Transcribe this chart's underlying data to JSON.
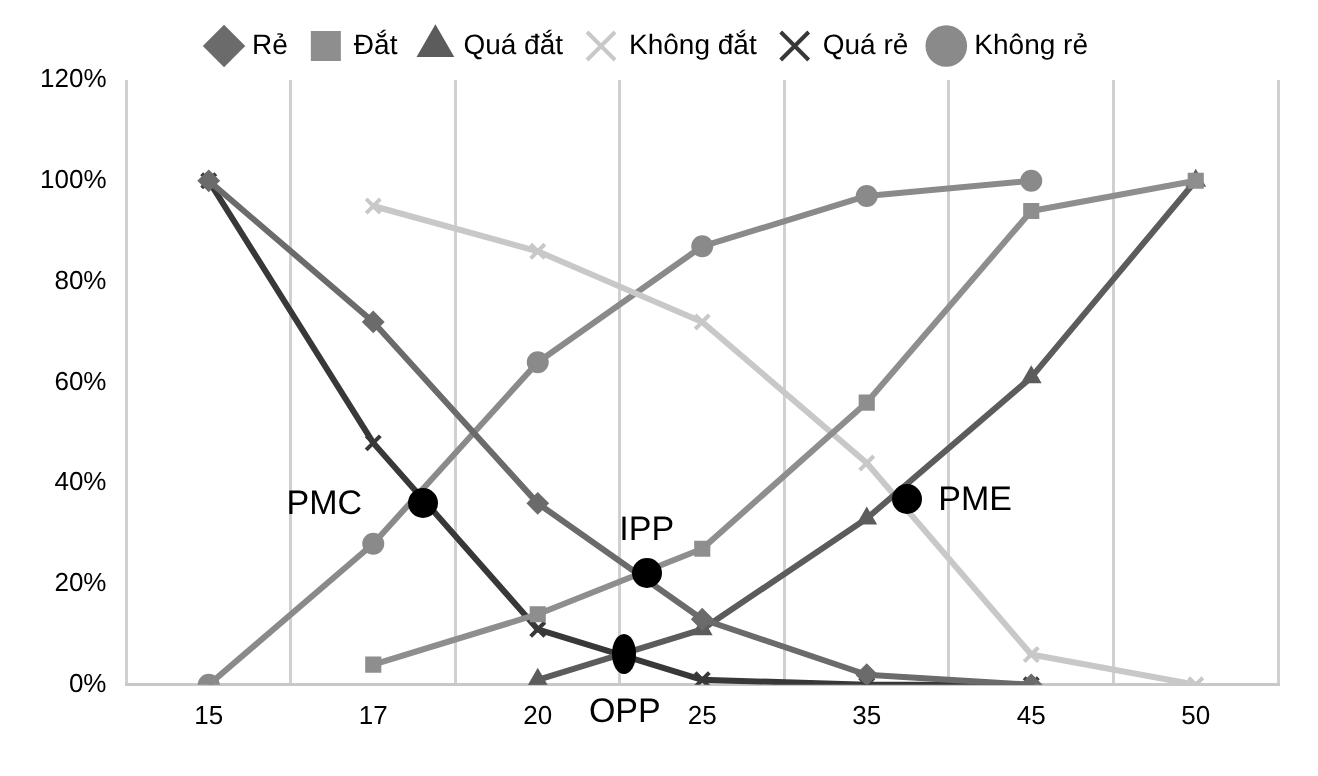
{
  "chart_data": {
    "type": "line",
    "categories": [
      "15",
      "17",
      "20",
      "25",
      "35",
      "45",
      "50"
    ],
    "series": [
      {
        "name": "Rẻ",
        "color": "#6b6b6b",
        "marker": "diamond",
        "values": [
          100,
          72,
          36,
          13,
          2,
          0,
          null
        ]
      },
      {
        "name": "Đắt",
        "color": "#8e8e8e",
        "marker": "square",
        "values": [
          null,
          4,
          14,
          27,
          56,
          94,
          100
        ]
      },
      {
        "name": "Quá đắt",
        "color": "#5c5c5c",
        "marker": "triangle",
        "values": [
          null,
          null,
          1,
          11,
          33,
          61,
          100
        ]
      },
      {
        "name": "Không đắt",
        "color": "#c8c8c8",
        "marker": "cross",
        "values": [
          null,
          95,
          86,
          72,
          44,
          6,
          0
        ]
      },
      {
        "name": "Quá rẻ",
        "color": "#383838",
        "marker": "cross",
        "values": [
          100,
          48,
          11,
          1,
          0,
          0,
          null
        ]
      },
      {
        "name": "Không rẻ",
        "color": "#8a8a8a",
        "marker": "circle",
        "values": [
          0,
          28,
          64,
          87,
          97,
          100,
          null
        ]
      }
    ],
    "ylim": [
      0,
      120
    ],
    "yticks": [
      {
        "value": 0,
        "label": "0%"
      },
      {
        "value": 20,
        "label": "20%"
      },
      {
        "value": 40,
        "label": "40%"
      },
      {
        "value": 60,
        "label": "60%"
      },
      {
        "value": 80,
        "label": "80%"
      },
      {
        "value": 100,
        "label": "100%"
      },
      {
        "value": 120,
        "label": "120%"
      }
    ],
    "grid": "x",
    "legend": "top",
    "annotations": [
      "PMC",
      "IPP",
      "OPP",
      "PME"
    ]
  }
}
